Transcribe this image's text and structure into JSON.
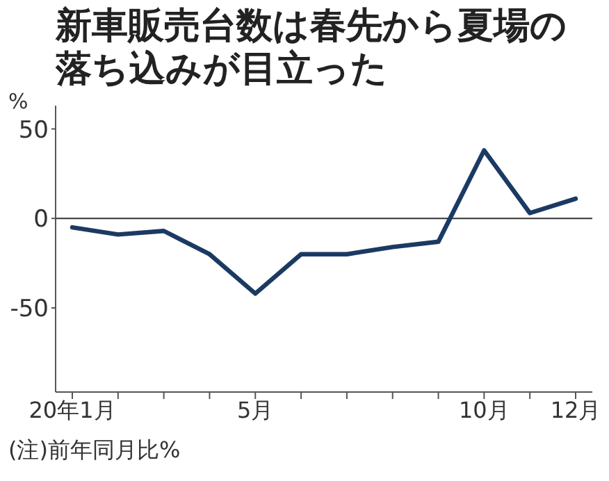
{
  "chart_data": {
    "type": "line",
    "title": "新車販売台数は春先から夏場の落ち込みが目立った",
    "ylabel": "%",
    "categories": [
      "20年1月",
      null,
      null,
      null,
      "5月",
      null,
      null,
      null,
      null,
      "10月",
      null,
      "12月"
    ],
    "series": [
      {
        "color": "#1b3a63",
        "values": [
          -5,
          -9,
          -7,
          -20,
          -42,
          -20,
          -20,
          -16,
          -13,
          38,
          3,
          11
        ]
      }
    ],
    "ylim": [
      -97,
      63
    ],
    "yticks": [
      -50,
      0,
      50
    ],
    "ref_lines": [
      {
        "axis": "y",
        "value": 0,
        "color": "#333333"
      }
    ],
    "marker": "none",
    "line_style": "solid",
    "annotations": [
      "(注)前年同月比%"
    ]
  }
}
